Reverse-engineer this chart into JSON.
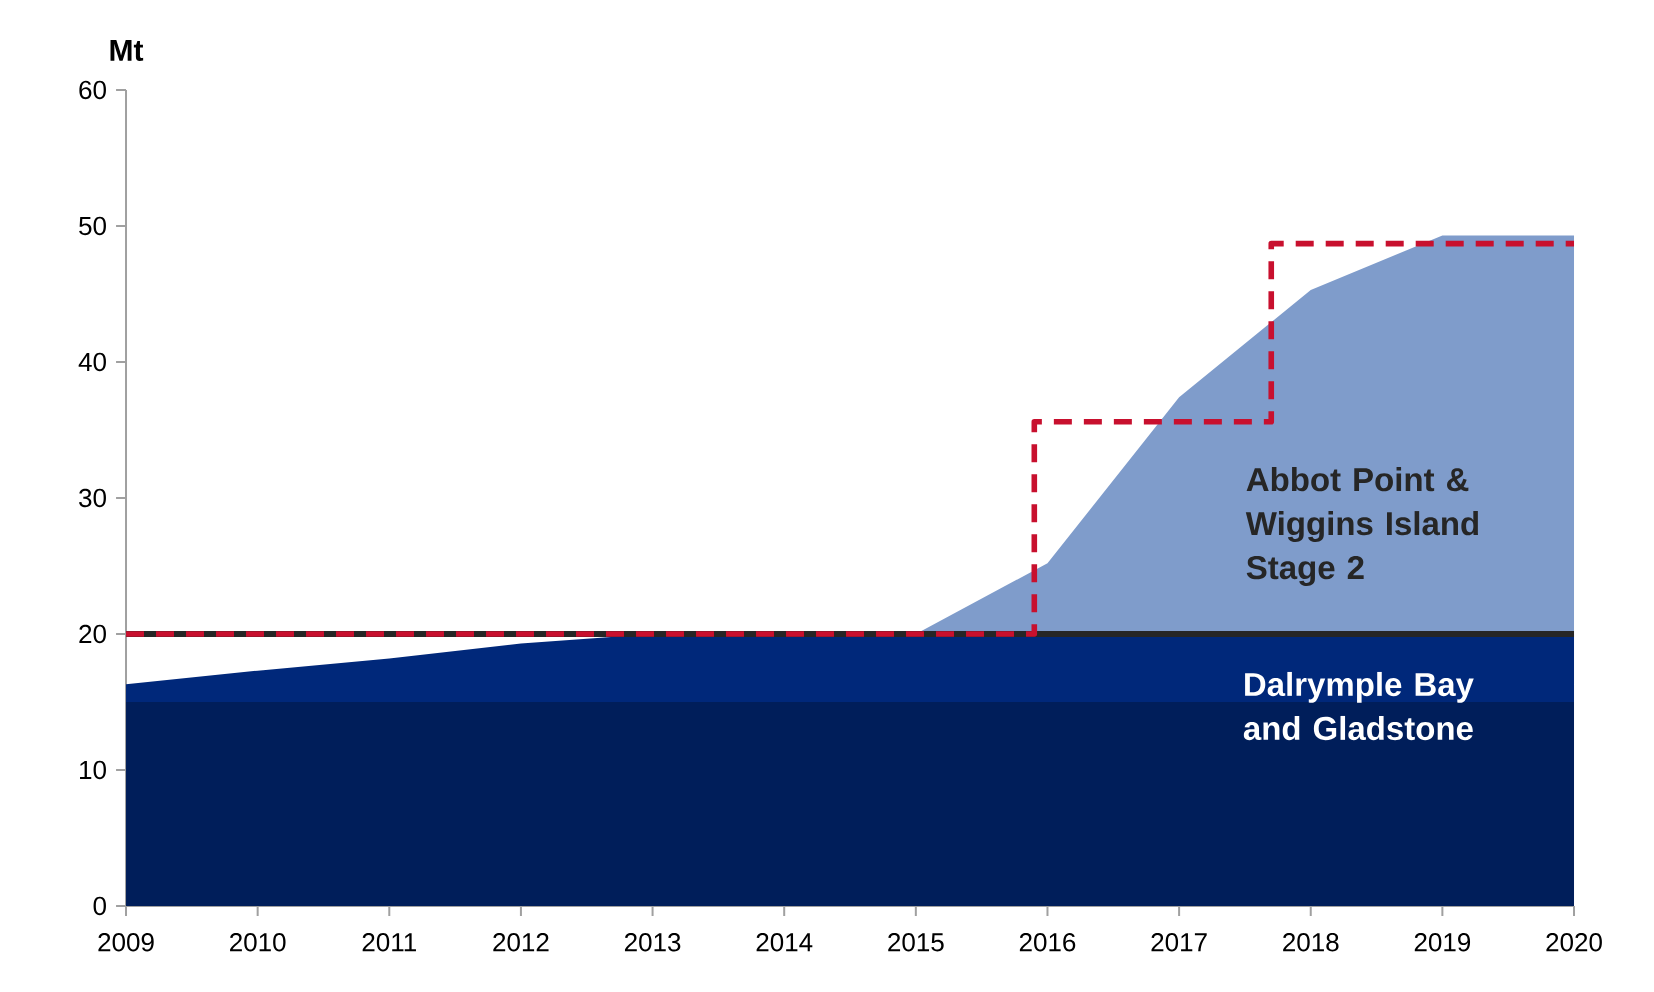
{
  "chart_data": {
    "type": "area",
    "stacked": true,
    "ylabel": "Mt",
    "x": [
      2009,
      2010,
      2011,
      2012,
      2013,
      2014,
      2015,
      2016,
      2017,
      2018,
      2019,
      2020
    ],
    "series": [
      {
        "name": "Dalrymple Bay and Gladstone",
        "color": "#001e5a",
        "values": [
          15,
          15,
          15,
          15,
          15,
          15,
          15,
          15,
          15,
          15,
          15,
          15
        ]
      },
      {
        "color": "#00287a",
        "values": [
          1.3,
          2.3,
          3.2,
          4.3,
          5,
          5,
          5,
          5,
          5,
          5,
          5,
          5
        ]
      },
      {
        "name": "Abbot Point & Wiggins Island Stage 2",
        "color": "#7f9ccb",
        "values": [
          0,
          0,
          0,
          0,
          0,
          0,
          0,
          5.2,
          17.4,
          25.3,
          29.3,
          29.3
        ]
      },
      {
        "type": "line",
        "color": "#c8102e",
        "line_style": "dashed",
        "x": [
          2009,
          2015.9,
          2015.9,
          2017.7,
          2017.7,
          2020
        ],
        "values": [
          20,
          20,
          35.6,
          35.6,
          48.7,
          48.7
        ]
      }
    ],
    "ref_lines": [
      {
        "axis": "y",
        "value": 20,
        "color": "#262626"
      }
    ],
    "xlim": [
      2009,
      2020
    ],
    "xticks": [
      2009,
      2010,
      2011,
      2012,
      2013,
      2014,
      2015,
      2016,
      2017,
      2018,
      2019,
      2020
    ],
    "ylim": [
      0,
      60
    ],
    "yticks": [
      0,
      10,
      20,
      30,
      40,
      50,
      60
    ]
  }
}
